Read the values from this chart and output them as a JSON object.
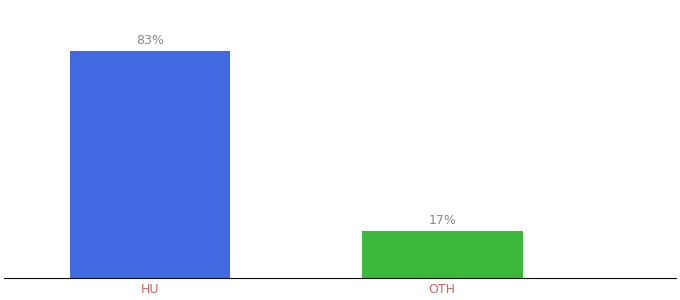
{
  "categories": [
    "HU",
    "OTH"
  ],
  "values": [
    83,
    17
  ],
  "bar_colors": [
    "#4169E1",
    "#3CB83C"
  ],
  "labels": [
    "83%",
    "17%"
  ],
  "ylim": [
    0,
    100
  ],
  "background_color": "#ffffff",
  "annotation_color": "#888888",
  "annotation_fontsize": 9,
  "xtick_fontsize": 9,
  "tick_label_color": "#cc6666",
  "figsize": [
    6.8,
    3.0
  ],
  "dpi": 100,
  "bar_positions": [
    1,
    2
  ],
  "bar_width": 0.55,
  "xlim": [
    0.5,
    2.8
  ]
}
